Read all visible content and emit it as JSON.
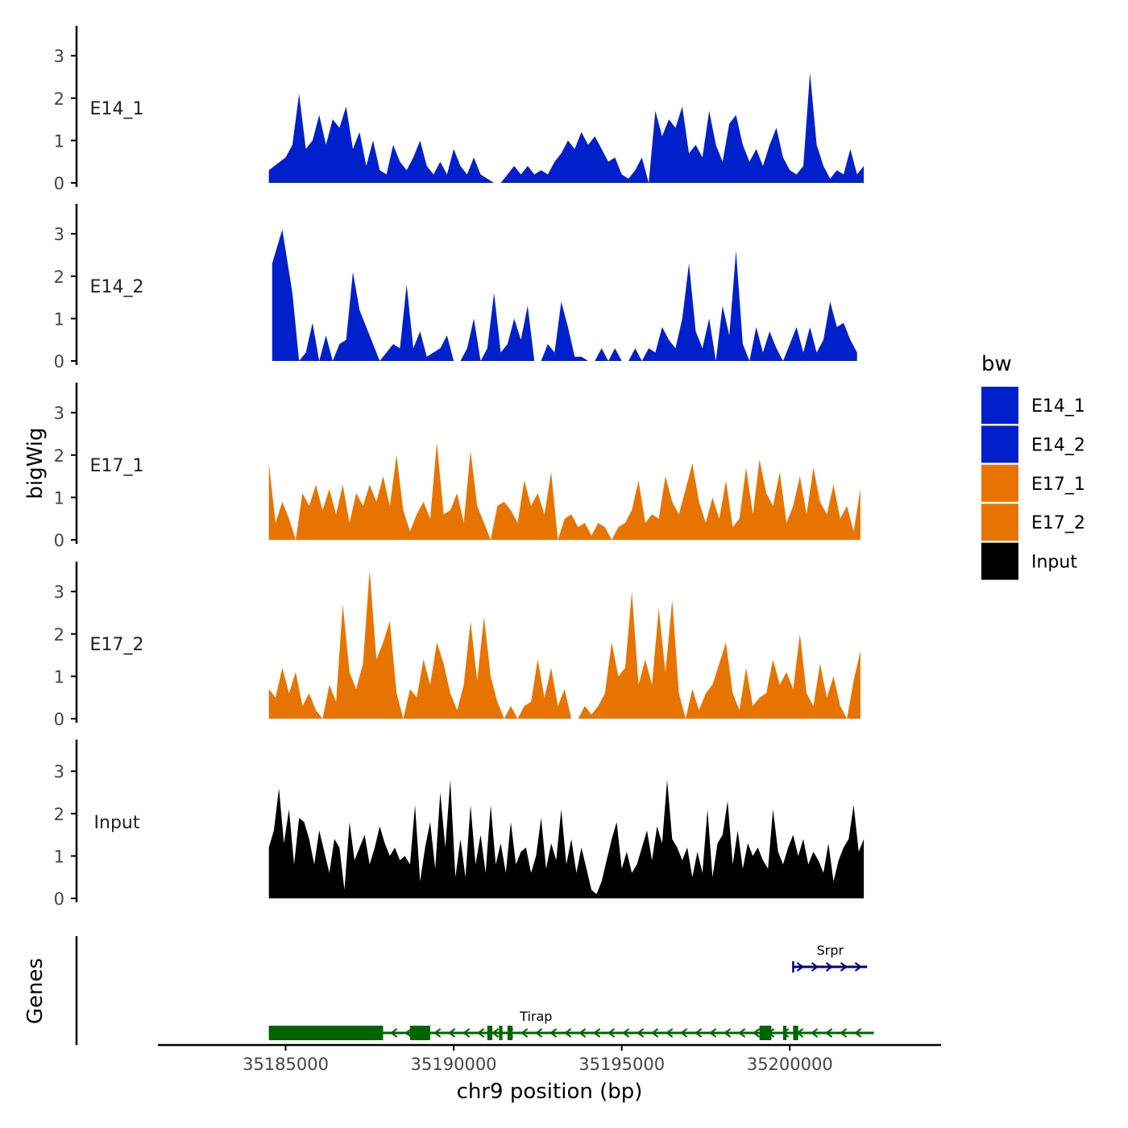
{
  "chart_data": {
    "type": "area",
    "ylabel": "bigWig",
    "genes_label": "Genes",
    "xlabel": "chr9 position (bp)",
    "xlim": [
      35181200,
      35204500
    ],
    "x_ticks": [
      {
        "value": 35185000,
        "label": "35185000"
      },
      {
        "value": 35190000,
        "label": "35190000"
      },
      {
        "value": 35195000,
        "label": "35195000"
      },
      {
        "value": 35200000,
        "label": "35200000"
      }
    ],
    "ylim": [
      0,
      3.7
    ],
    "y_ticks": [
      {
        "value": 0,
        "label": "0"
      },
      {
        "value": 1,
        "label": "1"
      },
      {
        "value": 2,
        "label": "2"
      },
      {
        "value": 3,
        "label": "3"
      }
    ],
    "legend": {
      "title": "bw",
      "position": "right",
      "entries": [
        {
          "label": "E14_1",
          "color": "#0020CC"
        },
        {
          "label": "E14_2",
          "color": "#0020CC"
        },
        {
          "label": "E17_1",
          "color": "#E87400"
        },
        {
          "label": "E17_2",
          "color": "#E87400"
        },
        {
          "label": "Input",
          "color": "#000000"
        }
      ]
    },
    "series": [
      {
        "name": "E14_1",
        "color": "#0020CC",
        "x": [
          35184500,
          35185000,
          35185200,
          35185400,
          35185600,
          35185800,
          35186000,
          35186200,
          35186400,
          35186600,
          35186800,
          35187000,
          35187200,
          35187400,
          35187600,
          35187800,
          35188000,
          35188200,
          35188400,
          35188600,
          35188800,
          35189000,
          35189200,
          35189400,
          35189600,
          35189800,
          35190000,
          35190200,
          35190400,
          35190600,
          35190800,
          35191000,
          35191200,
          35191400,
          35191600,
          35191800,
          35192000,
          35192200,
          35192400,
          35192600,
          35192800,
          35193000,
          35193200,
          35193400,
          35193600,
          35193800,
          35194000,
          35194200,
          35194400,
          35194600,
          35194800,
          35195000,
          35195200,
          35195400,
          35195600,
          35195800,
          35196000,
          35196200,
          35196400,
          35196600,
          35196800,
          35197000,
          35197200,
          35197400,
          35197600,
          35197800,
          35198000,
          35198200,
          35198400,
          35198600,
          35198800,
          35199000,
          35199200,
          35199400,
          35199600,
          35199800,
          35200000,
          35200200,
          35200400,
          35200600,
          35200800,
          35201000,
          35201200,
          35201400,
          35201600,
          35201800,
          35202000,
          35202200
        ],
        "values": [
          0.3,
          0.6,
          0.9,
          2.1,
          0.8,
          1.0,
          1.6,
          0.9,
          1.5,
          1.3,
          1.8,
          0.8,
          1.2,
          0.4,
          1.0,
          0.3,
          0.2,
          0.9,
          0.5,
          0.3,
          0.6,
          1.0,
          0.4,
          0.2,
          0.5,
          0.2,
          0.8,
          0.4,
          0.2,
          0.6,
          0.2,
          0.1,
          0.0,
          0.0,
          0.2,
          0.4,
          0.2,
          0.4,
          0.2,
          0.3,
          0.2,
          0.5,
          0.7,
          1.0,
          0.8,
          1.2,
          0.9,
          1.1,
          0.8,
          0.5,
          0.6,
          0.2,
          0.1,
          0.3,
          0.6,
          0.0,
          1.7,
          1.1,
          1.5,
          1.3,
          1.8,
          0.7,
          0.9,
          0.6,
          1.7,
          0.9,
          0.5,
          1.4,
          1.6,
          0.9,
          0.5,
          0.8,
          0.4,
          0.9,
          1.3,
          0.6,
          0.3,
          0.2,
          0.4,
          2.6,
          0.9,
          0.4,
          0.1,
          0.3,
          0.2,
          0.8,
          0.2,
          0.4
        ]
      },
      {
        "name": "E14_2",
        "color": "#0020CC",
        "x": [
          35184600,
          35184900,
          35185200,
          35185400,
          35185600,
          35185800,
          35186000,
          35186200,
          35186400,
          35186600,
          35186800,
          35187000,
          35187200,
          35187400,
          35187600,
          35187800,
          35188000,
          35188200,
          35188400,
          35188600,
          35188800,
          35189000,
          35189200,
          35189400,
          35189600,
          35189800,
          35190000,
          35190200,
          35190400,
          35190600,
          35190800,
          35191000,
          35191200,
          35191400,
          35191600,
          35191800,
          35192000,
          35192200,
          35192400,
          35192600,
          35192800,
          35193000,
          35193200,
          35193400,
          35193600,
          35193800,
          35194000,
          35194200,
          35194400,
          35194600,
          35194800,
          35195000,
          35195200,
          35195400,
          35195600,
          35195800,
          35196000,
          35196200,
          35196400,
          35196600,
          35196800,
          35197000,
          35197200,
          35197400,
          35197600,
          35197800,
          35198000,
          35198200,
          35198400,
          35198600,
          35198800,
          35199000,
          35199200,
          35199400,
          35199600,
          35199800,
          35200000,
          35200200,
          35200400,
          35200600,
          35200800,
          35201000,
          35201200,
          35201400,
          35201600,
          35201800,
          35202000
        ],
        "values": [
          2.3,
          3.1,
          1.6,
          0.0,
          0.2,
          0.9,
          0.0,
          0.6,
          0.0,
          0.4,
          0.5,
          2.1,
          1.2,
          0.8,
          0.4,
          0.0,
          0.2,
          0.4,
          0.3,
          1.8,
          0.3,
          0.7,
          0.1,
          0.2,
          0.3,
          0.6,
          0.0,
          0.0,
          0.3,
          1.0,
          0.0,
          0.3,
          1.6,
          0.2,
          0.4,
          1.0,
          0.5,
          1.3,
          0.0,
          0.0,
          0.4,
          0.2,
          1.4,
          0.8,
          0.1,
          0.1,
          0.0,
          0.0,
          0.3,
          0.0,
          0.3,
          0.0,
          0.0,
          0.3,
          0.0,
          0.3,
          0.2,
          0.8,
          0.5,
          0.3,
          1.0,
          2.3,
          0.7,
          0.3,
          1.0,
          0.0,
          1.3,
          0.6,
          2.6,
          0.4,
          0.0,
          0.8,
          0.2,
          0.7,
          0.3,
          0.0,
          0.4,
          0.8,
          0.2,
          0.8,
          0.2,
          0.5,
          1.4,
          0.8,
          0.9,
          0.5,
          0.2
        ]
      },
      {
        "name": "E17_1",
        "color": "#E87400",
        "x": [
          35184500,
          35184700,
          35184900,
          35185100,
          35185300,
          35185500,
          35185700,
          35185900,
          35186100,
          35186300,
          35186500,
          35186700,
          35186900,
          35187100,
          35187300,
          35187500,
          35187700,
          35187900,
          35188100,
          35188300,
          35188500,
          35188700,
          35188900,
          35189100,
          35189300,
          35189500,
          35189700,
          35189900,
          35190100,
          35190300,
          35190500,
          35190700,
          35190900,
          35191100,
          35191300,
          35191500,
          35191700,
          35191900,
          35192100,
          35192300,
          35192500,
          35192700,
          35192900,
          35193100,
          35193300,
          35193500,
          35193700,
          35193900,
          35194100,
          35194300,
          35194500,
          35194700,
          35194900,
          35195100,
          35195300,
          35195500,
          35195700,
          35195900,
          35196100,
          35196300,
          35196500,
          35196700,
          35196900,
          35197100,
          35197300,
          35197500,
          35197700,
          35197900,
          35198100,
          35198300,
          35198500,
          35198700,
          35198900,
          35199100,
          35199300,
          35199500,
          35199700,
          35199900,
          35200100,
          35200300,
          35200500,
          35200700,
          35200900,
          35201100,
          35201300,
          35201500,
          35201700,
          35201900,
          35202100
        ],
        "values": [
          1.8,
          0.4,
          0.9,
          0.5,
          0.0,
          1.1,
          0.8,
          1.3,
          0.7,
          1.2,
          0.6,
          1.3,
          0.4,
          1.1,
          0.8,
          1.3,
          0.9,
          1.5,
          0.8,
          2.0,
          0.7,
          0.2,
          0.6,
          0.9,
          0.5,
          2.3,
          0.6,
          0.7,
          1.1,
          0.4,
          2.1,
          0.8,
          0.4,
          0.0,
          0.8,
          0.9,
          0.7,
          0.4,
          1.4,
          0.8,
          1.1,
          0.6,
          1.6,
          0.0,
          0.5,
          0.6,
          0.3,
          0.4,
          0.1,
          0.4,
          0.3,
          0.0,
          0.3,
          0.4,
          0.7,
          1.4,
          0.4,
          0.6,
          0.5,
          1.5,
          0.9,
          0.6,
          1.2,
          1.8,
          0.9,
          0.4,
          1.0,
          0.5,
          1.4,
          0.3,
          0.5,
          1.7,
          0.6,
          1.9,
          1.1,
          0.8,
          1.6,
          0.4,
          0.8,
          1.5,
          0.6,
          1.7,
          0.9,
          0.6,
          1.3,
          0.5,
          0.8,
          0.2,
          1.2
        ]
      },
      {
        "name": "E17_2",
        "color": "#E87400",
        "x": [
          35184500,
          35184700,
          35184900,
          35185100,
          35185300,
          35185500,
          35185700,
          35185900,
          35186100,
          35186300,
          35186500,
          35186700,
          35186900,
          35187100,
          35187300,
          35187500,
          35187700,
          35187900,
          35188100,
          35188300,
          35188500,
          35188700,
          35188900,
          35189100,
          35189300,
          35189500,
          35189700,
          35189900,
          35190100,
          35190300,
          35190500,
          35190700,
          35190900,
          35191100,
          35191300,
          35191500,
          35191700,
          35191900,
          35192100,
          35192300,
          35192500,
          35192700,
          35192900,
          35193100,
          35193300,
          35193500,
          35193700,
          35193900,
          35194100,
          35194300,
          35194500,
          35194700,
          35194900,
          35195100,
          35195300,
          35195500,
          35195700,
          35195900,
          35196100,
          35196300,
          35196500,
          35196700,
          35196900,
          35197100,
          35197300,
          35197500,
          35197700,
          35197900,
          35198100,
          35198300,
          35198500,
          35198700,
          35198900,
          35199100,
          35199300,
          35199500,
          35199700,
          35199900,
          35200100,
          35200300,
          35200500,
          35200700,
          35200900,
          35201100,
          35201300,
          35201500,
          35201700,
          35201900,
          35202100
        ],
        "values": [
          0.7,
          0.5,
          1.2,
          0.6,
          1.1,
          0.3,
          0.6,
          0.2,
          0.0,
          0.8,
          0.4,
          2.7,
          1.1,
          0.7,
          1.3,
          3.5,
          1.4,
          1.8,
          2.3,
          0.6,
          0.0,
          0.7,
          0.5,
          1.4,
          0.8,
          1.8,
          1.3,
          0.6,
          0.2,
          0.8,
          2.3,
          0.9,
          2.4,
          1.0,
          0.4,
          0.0,
          0.3,
          0.0,
          0.3,
          0.4,
          1.4,
          0.5,
          1.2,
          0.3,
          0.7,
          0.0,
          0.0,
          0.3,
          0.1,
          0.3,
          0.6,
          1.8,
          1.0,
          1.2,
          3.0,
          0.8,
          1.4,
          0.8,
          2.6,
          1.1,
          2.8,
          0.6,
          0.0,
          0.7,
          0.2,
          0.6,
          0.8,
          1.3,
          1.8,
          0.6,
          0.2,
          1.2,
          0.3,
          0.5,
          0.6,
          1.4,
          0.8,
          1.1,
          0.7,
          2.0,
          0.6,
          0.3,
          1.3,
          0.5,
          1.0,
          0.3,
          0.0,
          0.9,
          1.6
        ]
      },
      {
        "name": "Input",
        "color": "#000000",
        "x": [
          35184500,
          35184650,
          35184800,
          35184950,
          35185100,
          35185250,
          35185400,
          35185550,
          35185700,
          35185850,
          35186000,
          35186150,
          35186300,
          35186450,
          35186600,
          35186750,
          35186900,
          35187050,
          35187200,
          35187350,
          35187500,
          35187650,
          35187800,
          35187950,
          35188100,
          35188250,
          35188400,
          35188550,
          35188700,
          35188850,
          35189000,
          35189150,
          35189300,
          35189450,
          35189600,
          35189750,
          35189900,
          35190050,
          35190200,
          35190350,
          35190500,
          35190650,
          35190800,
          35190950,
          35191100,
          35191250,
          35191400,
          35191550,
          35191700,
          35191850,
          35192000,
          35192150,
          35192300,
          35192450,
          35192600,
          35192750,
          35192900,
          35193050,
          35193200,
          35193350,
          35193500,
          35193650,
          35193800,
          35193950,
          35194100,
          35194250,
          35194400,
          35194550,
          35194700,
          35194850,
          35195000,
          35195150,
          35195300,
          35195450,
          35195600,
          35195750,
          35195900,
          35196050,
          35196200,
          35196350,
          35196500,
          35196650,
          35196800,
          35196950,
          35197100,
          35197250,
          35197400,
          35197550,
          35197700,
          35197850,
          35198000,
          35198150,
          35198300,
          35198450,
          35198600,
          35198750,
          35198900,
          35199050,
          35199200,
          35199350,
          35199500,
          35199650,
          35199800,
          35199950,
          35200100,
          35200250,
          35200400,
          35200550,
          35200700,
          35200850,
          35201000,
          35201150,
          35201300,
          35201450,
          35201600,
          35201750,
          35201900,
          35202050,
          35202200
        ],
        "values": [
          1.2,
          1.6,
          2.6,
          1.3,
          2.1,
          0.8,
          1.9,
          1.8,
          1.4,
          0.8,
          1.6,
          1.1,
          0.6,
          1.4,
          1.2,
          0.2,
          1.8,
          0.9,
          1.2,
          1.5,
          0.8,
          1.2,
          1.7,
          1.3,
          1.0,
          1.2,
          0.9,
          1.0,
          0.8,
          2.2,
          0.4,
          1.2,
          1.8,
          0.7,
          2.5,
          1.2,
          2.8,
          0.5,
          1.4,
          0.5,
          2.2,
          0.8,
          1.5,
          0.6,
          2.2,
          0.8,
          1.3,
          0.6,
          1.8,
          0.8,
          1.1,
          1.2,
          0.6,
          1.0,
          1.9,
          0.7,
          1.3,
          0.9,
          2.1,
          0.8,
          1.4,
          0.6,
          1.2,
          0.7,
          0.2,
          0.1,
          0.4,
          0.9,
          1.4,
          1.8,
          0.7,
          1.1,
          0.6,
          0.8,
          1.2,
          1.6,
          0.9,
          1.7,
          1.3,
          2.8,
          1.4,
          1.2,
          0.9,
          1.2,
          0.5,
          1.1,
          0.6,
          2.1,
          0.5,
          1.3,
          1.5,
          2.3,
          0.8,
          1.6,
          0.7,
          1.3,
          1.0,
          1.2,
          0.9,
          0.7,
          2.1,
          1.1,
          0.8,
          1.2,
          1.5,
          1.0,
          1.4,
          0.8,
          1.1,
          0.9,
          0.6,
          1.3,
          0.4,
          0.9,
          1.2,
          1.4,
          2.2,
          1.1,
          1.4
        ]
      }
    ],
    "genes": [
      {
        "name": "Tirap",
        "color": "#006400",
        "strand": "-",
        "start": 35184500,
        "end": 35202500,
        "exons": [
          [
            35184500,
            35187900
          ],
          [
            35188700,
            35189300
          ],
          [
            35191000,
            35191150
          ],
          [
            35191350,
            35191450
          ],
          [
            35191600,
            35191750
          ],
          [
            35199100,
            35199450
          ],
          [
            35199800,
            35199900
          ],
          [
            35200100,
            35200250
          ]
        ]
      },
      {
        "name": "Srpr",
        "color": "#000080",
        "strand": "+",
        "start": 35200100,
        "end": 35202300,
        "exons": []
      }
    ]
  }
}
